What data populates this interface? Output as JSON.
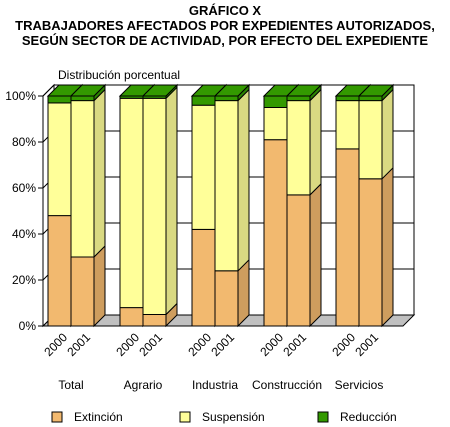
{
  "chart_data": {
    "type": "bar",
    "stacked": true,
    "three_d": true,
    "title": "GRÁFICO X",
    "subtitle_lines": [
      "TRABAJADORES AFECTADOS POR EXPEDIENTES AUTORIZADOS,",
      "SEGÚN SECTOR DE ACTIVIDAD, POR  EFECTO DEL EXPEDIENTE"
    ],
    "ylabel": "Distribución porcentual",
    "xlabel": "",
    "ylim": [
      0,
      100
    ],
    "y_ticks": [
      "0%",
      "20%",
      "40%",
      "60%",
      "80%",
      "100%"
    ],
    "grid": true,
    "legend_position": "bottom",
    "groups": [
      {
        "name": "Total",
        "years": [
          "2000",
          "2001"
        ]
      },
      {
        "name": "Agrario",
        "years": [
          "2000",
          "2001"
        ]
      },
      {
        "name": "Industria",
        "years": [
          "2000",
          "2001"
        ]
      },
      {
        "name": "Construcción",
        "years": [
          "2000",
          "2001"
        ]
      },
      {
        "name": "Servicios",
        "years": [
          "2000",
          "2001"
        ]
      }
    ],
    "series": [
      {
        "name": "Extinción",
        "color": "#f2b96f",
        "values": [
          48,
          30,
          8,
          5,
          42,
          24,
          81,
          57,
          77,
          64
        ]
      },
      {
        "name": "Suspensión",
        "color": "#ffff99",
        "values": [
          49,
          68,
          91,
          94,
          54,
          74,
          14,
          41,
          21,
          34
        ]
      },
      {
        "name": "Reducción",
        "color": "#339900",
        "values": [
          3,
          2,
          1,
          1,
          4,
          2,
          5,
          2,
          2,
          2
        ]
      }
    ]
  }
}
